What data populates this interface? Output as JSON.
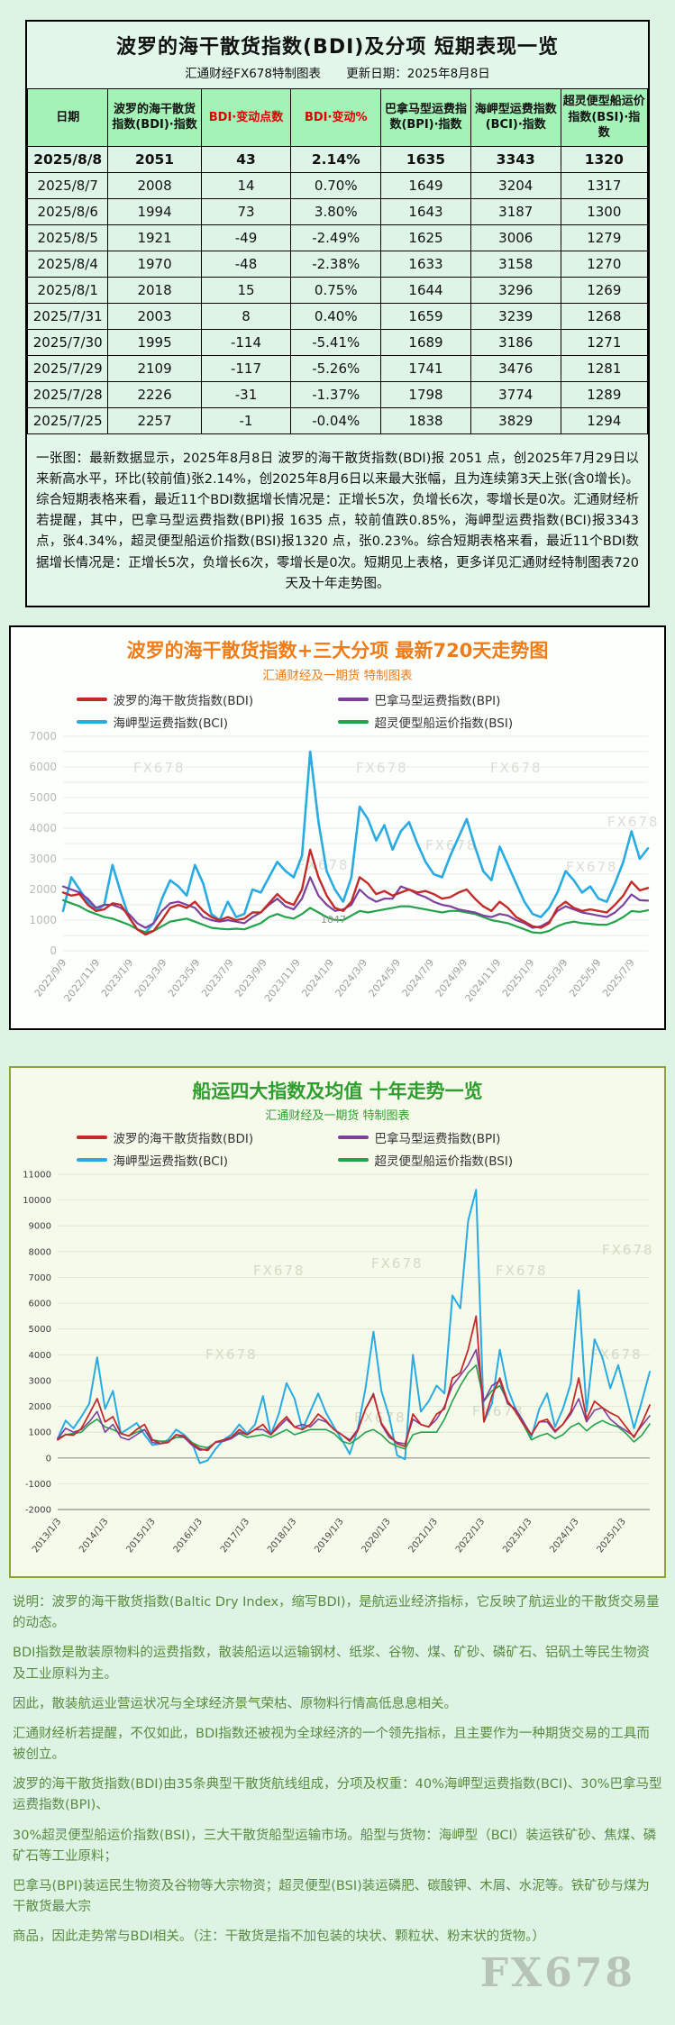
{
  "page": {
    "watermark": "FX678",
    "logo": "FX678"
  },
  "table_panel": {
    "title": "波罗的海干散货指数(BDI)及分项 短期表现一览",
    "subtitle_left": "汇通财经FX678特制图表",
    "subtitle_right": "更新日期：2025年8月8日",
    "columns": [
      {
        "label": "日期"
      },
      {
        "label": "波罗的海干散货指数(BDI)·指数"
      },
      {
        "label": "BDI·变动点数",
        "color": "#dd0000"
      },
      {
        "label": "BDI·变动%",
        "color": "#dd0000"
      },
      {
        "label": "巴拿马型运费指数(BPI)·指数"
      },
      {
        "label": "海岬型运费指数(BCI)·指数"
      },
      {
        "label": "超灵便型船运价指数(BSI)·指数"
      }
    ],
    "rows": [
      [
        "2025/8/8",
        "2051",
        "43",
        "2.14%",
        "1635",
        "3343",
        "1320"
      ],
      [
        "2025/8/7",
        "2008",
        "14",
        "0.70%",
        "1649",
        "3204",
        "1317"
      ],
      [
        "2025/8/6",
        "1994",
        "73",
        "3.80%",
        "1643",
        "3187",
        "1300"
      ],
      [
        "2025/8/5",
        "1921",
        "-49",
        "-2.49%",
        "1625",
        "3006",
        "1279"
      ],
      [
        "2025/8/4",
        "1970",
        "-48",
        "-2.38%",
        "1633",
        "3158",
        "1270"
      ],
      [
        "2025/8/1",
        "2018",
        "15",
        "0.75%",
        "1644",
        "3296",
        "1269"
      ],
      [
        "2025/7/31",
        "2003",
        "8",
        "0.40%",
        "1659",
        "3239",
        "1268"
      ],
      [
        "2025/7/30",
        "1995",
        "-114",
        "-5.41%",
        "1689",
        "3186",
        "1271"
      ],
      [
        "2025/7/29",
        "2109",
        "-117",
        "-5.26%",
        "1741",
        "3476",
        "1281"
      ],
      [
        "2025/7/28",
        "2226",
        "-31",
        "-1.37%",
        "1798",
        "3774",
        "1289"
      ],
      [
        "2025/7/25",
        "2257",
        "-1",
        "-0.04%",
        "1838",
        "3829",
        "1294"
      ]
    ],
    "summary": "一张图：最新数据显示，2025年8月8日 波罗的海干散货指数(BDI)报 2051 点，创2025年7月29日以来新高水平，环比(较前值)张2.14%，创2025年8月6日以来最大张幅，且为连续第3天上张(含0增长)。综合短期表格来看，最近11个BDI数据增长情况是：正增长5次，负增长6次，零增长是0次。汇通财经析若提醒，其中，巴拿马型运费指数(BPI)报 1635 点，较前值跌0.85%，海岬型运费指数(BCI)报3343 点，张4.34%，超灵便型船运价指数(BSI)报1320 点，张0.23%。综合短期表格来看，最近11个BDI数据增长情况是：正增长5次，负增长6次，零增长是0次。短期见上表格，更多详见汇通财经特制图表720天及十年走势图。"
  },
  "chart_data": [
    {
      "type": "line",
      "title": "波罗的海干散货指数+三大分项 最新720天走势图",
      "subtitle": "汇通财经及一期货 特制图表",
      "ylim": [
        0,
        7000
      ],
      "ytick_step": 1000,
      "grid_step": 500,
      "xspan": 35,
      "xlabel_step": 2,
      "legend_position": "top",
      "xlabels": [
        "2022/9/9",
        "2022/11/9",
        "2023/1/9",
        "2023/3/9",
        "2023/5/9",
        "2023/7/9",
        "2023/9/9",
        "2023/11/9",
        "2024/1/9",
        "2024/3/9",
        "2024/5/9",
        "2024/7/9",
        "2024/9/9",
        "2024/11/9",
        "2025/1/9",
        "2025/3/9",
        "2025/5/9",
        "2025/7/9"
      ],
      "legend": [
        {
          "label": "波罗的海干散货指数(BDI)",
          "color": "#c32a2a"
        },
        {
          "label": "巴拿马型运费指数(BPI)",
          "color": "#7d3f9e"
        },
        {
          "label": "海岬型运费指数(BCI)",
          "color": "#29abe2"
        },
        {
          "label": "超灵便型船运价指数(BSI)",
          "color": "#22a24b"
        }
      ],
      "annotations": [
        {
          "text": "1047",
          "x_frac": 0.44,
          "y": 900
        }
      ],
      "series": [
        {
          "name": "海岬型运费指数(BCI)",
          "color": "#29abe2",
          "values": [
            1300,
            2400,
            2000,
            1600,
            1300,
            1500,
            2800,
            1900,
            1100,
            700,
            600,
            900,
            1700,
            2300,
            2100,
            1800,
            2800,
            2200,
            1200,
            1000,
            1600,
            1100,
            1200,
            2000,
            1900,
            2400,
            2900,
            2600,
            2400,
            3100,
            6500,
            4200,
            2600,
            2000,
            1600,
            2400,
            4700,
            4300,
            3600,
            4100,
            3300,
            3900,
            4200,
            3500,
            2900,
            2500,
            2400,
            3100,
            3700,
            4300,
            3400,
            2600,
            2300,
            3400,
            2800,
            2200,
            1600,
            1200,
            1100,
            1400,
            1900,
            2600,
            2300,
            1900,
            2100,
            1700,
            1600,
            2200,
            2900,
            3900,
            3000,
            3343
          ]
        },
        {
          "name": "超灵便型船运价指数(BSI)",
          "color": "#22a24b",
          "values": [
            1650,
            1550,
            1450,
            1300,
            1200,
            1100,
            1050,
            950,
            850,
            700,
            600,
            650,
            800,
            950,
            1000,
            1050,
            950,
            850,
            750,
            720,
            700,
            720,
            700,
            800,
            900,
            1100,
            1200,
            1100,
            1050,
            1200,
            1400,
            1250,
            1100,
            1000,
            1000,
            1150,
            1300,
            1250,
            1300,
            1350,
            1400,
            1450,
            1450,
            1400,
            1350,
            1300,
            1250,
            1300,
            1300,
            1250,
            1200,
            1100,
            1000,
            950,
            900,
            800,
            700,
            600,
            580,
            650,
            800,
            900,
            950,
            900,
            880,
            850,
            850,
            950,
            1100,
            1294,
            1270,
            1320
          ]
        },
        {
          "name": "巴拿马型运费指数(BPI)",
          "color": "#7d3f9e",
          "values": [
            2100,
            2000,
            1900,
            1700,
            1400,
            1500,
            1500,
            1400,
            1200,
            900,
            750,
            900,
            1300,
            1550,
            1600,
            1500,
            1400,
            1100,
            1000,
            950,
            1000,
            950,
            900,
            1100,
            1250,
            1500,
            1700,
            1450,
            1350,
            1700,
            2400,
            1800,
            1500,
            1300,
            1350,
            1500,
            2000,
            1750,
            1600,
            1700,
            1700,
            2100,
            2000,
            1850,
            1750,
            1600,
            1500,
            1450,
            1350,
            1300,
            1250,
            1150,
            1100,
            1200,
            1150,
            1000,
            900,
            750,
            800,
            950,
            1300,
            1450,
            1350,
            1250,
            1200,
            1150,
            1100,
            1250,
            1500,
            1838,
            1650,
            1635
          ]
        },
        {
          "name": "波罗的海干散货指数(BDI)",
          "color": "#c32a2a",
          "values": [
            1900,
            1800,
            1850,
            1500,
            1300,
            1350,
            1550,
            1500,
            1100,
            700,
            530,
            650,
            1000,
            1400,
            1500,
            1400,
            1600,
            1300,
            1100,
            1000,
            1100,
            1000,
            1050,
            1250,
            1250,
            1550,
            1850,
            1600,
            1500,
            2000,
            3300,
            2400,
            1800,
            1400,
            1300,
            1600,
            2400,
            2200,
            1850,
            1950,
            1800,
            1900,
            2000,
            1900,
            1950,
            1850,
            1700,
            1750,
            1900,
            2000,
            1700,
            1450,
            1300,
            1600,
            1400,
            1100,
            950,
            800,
            750,
            900,
            1400,
            1600,
            1400,
            1300,
            1350,
            1300,
            1250,
            1500,
            1800,
            2257,
            1970,
            2051
          ]
        }
      ]
    },
    {
      "type": "line",
      "title": "船运四大指数及均值 十年走势一览",
      "subtitle": "汇通财经及一期货 特制图表",
      "ylim": [
        -2000,
        11000
      ],
      "ytick_step": 1000,
      "grid_step": 1000,
      "xspan": 151,
      "xlabel_step": 12,
      "legend_position": "top",
      "xlabels": [
        "2013/1/3",
        "2014/1/3",
        "2015/1/3",
        "2016/1/3",
        "2017/1/3",
        "2018/1/3",
        "2019/1/3",
        "2020/1/3",
        "2021/1/3",
        "2022/1/3",
        "2023/1/3",
        "2024/1/3",
        "2025/1/3"
      ],
      "legend": [
        {
          "label": "波罗的海干散货指数(BDI)",
          "color": "#c32a2a"
        },
        {
          "label": "巴拿马型运费指数(BPI)",
          "color": "#7d3f9e"
        },
        {
          "label": "海岬型运费指数(BCI)",
          "color": "#29abe2"
        },
        {
          "label": "超灵便型船运价指数(BSI)",
          "color": "#22a24b"
        }
      ],
      "series": [
        {
          "name": "海岬型运费指数(BCI)",
          "color": "#29abe2",
          "values": [
            750,
            1450,
            1150,
            1600,
            2100,
            3900,
            1900,
            2600,
            950,
            1150,
            1350,
            900,
            500,
            550,
            700,
            1100,
            900,
            600,
            -200,
            -100,
            350,
            700,
            900,
            1300,
            950,
            1300,
            2400,
            900,
            1700,
            2900,
            2300,
            1100,
            1800,
            2500,
            1750,
            1200,
            700,
            150,
            1100,
            2700,
            4900,
            2600,
            1600,
            100,
            -50,
            4000,
            1800,
            2200,
            2800,
            2500,
            6300,
            5800,
            9200,
            10400,
            1400,
            2100,
            4200,
            2700,
            1900,
            1400,
            800,
            1900,
            2500,
            1200,
            1900,
            2900,
            6500,
            1800,
            4600,
            3900,
            2700,
            3600,
            2400,
            1150,
            2200,
            3343
          ]
        },
        {
          "name": "超灵便型船运价指数(BSI)",
          "color": "#22a24b",
          "values": [
            760,
            900,
            950,
            1000,
            1300,
            1500,
            1200,
            1100,
            950,
            850,
            1000,
            1100,
            700,
            650,
            650,
            800,
            800,
            600,
            450,
            400,
            600,
            650,
            750,
            950,
            800,
            850,
            900,
            800,
            950,
            1100,
            900,
            1000,
            1100,
            1100,
            1100,
            950,
            650,
            550,
            750,
            1000,
            1100,
            900,
            600,
            450,
            350,
            900,
            1000,
            1000,
            1000,
            1500,
            2200,
            2800,
            3300,
            3600,
            2200,
            2600,
            2800,
            2200,
            1800,
            1300,
            700,
            850,
            950,
            750,
            900,
            1200,
            1350,
            1050,
            1300,
            1450,
            1300,
            1200,
            950,
            620,
            880,
            1320
          ]
        },
        {
          "name": "巴拿马型运费指数(BPI)",
          "color": "#7d3f9e",
          "values": [
            740,
            1150,
            1000,
            1100,
            1400,
            1800,
            1000,
            1300,
            800,
            700,
            900,
            1100,
            600,
            550,
            600,
            900,
            800,
            500,
            300,
            350,
            600,
            650,
            750,
            1000,
            900,
            1100,
            1100,
            900,
            1200,
            1500,
            1200,
            1300,
            1200,
            1500,
            1400,
            1100,
            900,
            700,
            1100,
            1900,
            2500,
            1300,
            800,
            600,
            550,
            1500,
            1300,
            1200,
            1500,
            2000,
            2800,
            3200,
            3600,
            4200,
            2200,
            2800,
            3000,
            2100,
            1900,
            1400,
            900,
            1400,
            1400,
            1000,
            1300,
            1700,
            2300,
            1400,
            1850,
            1950,
            1500,
            1250,
            1050,
            850,
            1250,
            1635
          ]
        },
        {
          "name": "波罗的海干散货指数(BDI)",
          "color": "#c32a2a",
          "values": [
            700,
            910,
            880,
            1150,
            1700,
            2300,
            1400,
            1600,
            950,
            850,
            1100,
            1300,
            700,
            560,
            600,
            900,
            850,
            550,
            360,
            290,
            620,
            700,
            800,
            1100,
            900,
            1100,
            1300,
            900,
            1300,
            1600,
            1200,
            1100,
            1300,
            1700,
            1450,
            1100,
            900,
            650,
            1050,
            1900,
            2450,
            1350,
            900,
            550,
            450,
            1700,
            1300,
            1200,
            1700,
            1900,
            3100,
            3300,
            4200,
            5500,
            1400,
            2400,
            3100,
            2200,
            1800,
            1300,
            900,
            1400,
            1500,
            1050,
            1300,
            1800,
            3100,
            1500,
            2200,
            1950,
            1750,
            1600,
            1200,
            800,
            1350,
            2051
          ]
        }
      ]
    }
  ],
  "footer": {
    "lines": [
      "说明：波罗的海干散货指数(Baltic Dry Index，缩写BDI)，是航运业经济指标，它反映了航运业的干散货交易量的动态。",
      "BDI指数是散装原物料的运费指数，散装船运以运输钢材、纸浆、谷物、煤、矿砂、磷矿石、铝矾土等民生物资及工业原料为主。",
      "因此，散装航运业营运状况与全球经济景气荣枯、原物料行情高低息息相关。",
      "汇通财经析若提醒，不仅如此，BDI指数还被视为全球经济的一个领先指标，且主要作为一种期货交易的工具而被创立。",
      "波罗的海干散货指数(BDI)由35条典型干散货航线组成，分项及权重：40%海岬型运费指数(BCI)、30%巴拿马型运费指数(BPI)、",
      "30%超灵便型船运价指数(BSI)，三大干散货船型运输市场。船型与货物：海岬型（BCI）装运铁矿砂、焦煤、磷矿石等工业原料；",
      "巴拿马(BPI)装运民生物资及谷物等大宗物资；超灵便型(BSI)装运磷肥、碳酸钾、木屑、水泥等。铁矿砂与煤为干散货最大宗",
      "商品，因此走势常与BDI相关。（注：干散货是指不加包装的块状、颗粒状、粉末状的货物。）"
    ]
  }
}
